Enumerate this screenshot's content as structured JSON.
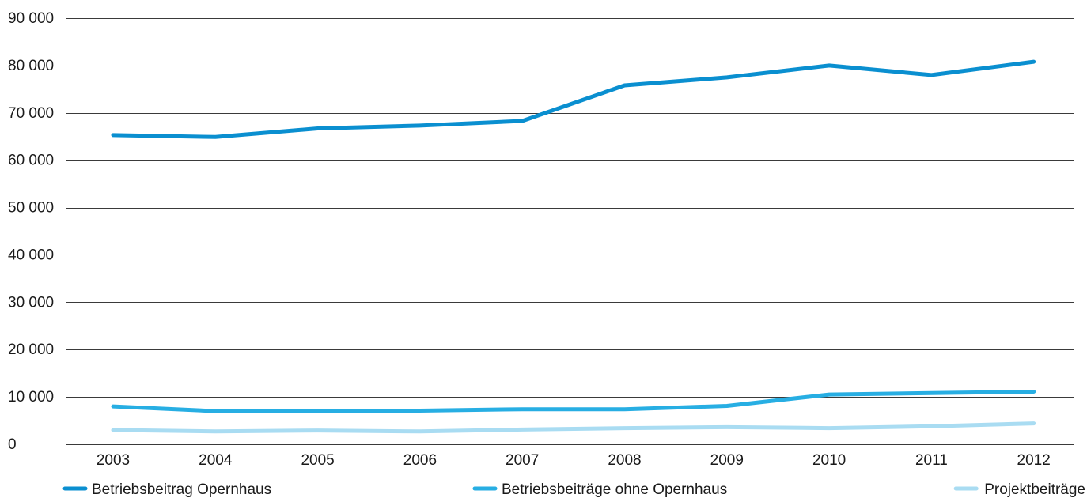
{
  "chart_data": {
    "type": "line",
    "title": "",
    "xlabel": "",
    "ylabel": "",
    "categories": [
      "2003",
      "2004",
      "2005",
      "2006",
      "2007",
      "2008",
      "2009",
      "2010",
      "2011",
      "2012"
    ],
    "ylim": [
      0,
      90000
    ],
    "yticks": [
      0,
      10000,
      20000,
      30000,
      40000,
      50000,
      60000,
      70000,
      80000,
      90000
    ],
    "ytick_labels": [
      "0",
      "10 000",
      "20 000",
      "30 000",
      "40 000",
      "50 000",
      "60 000",
      "70 000",
      "80 000",
      "90 000"
    ],
    "grid": true,
    "legend_placement": "bottom",
    "series": [
      {
        "name": "Betriebsbeitrag Opernhaus",
        "color": "#0a8fd0",
        "values": [
          65300,
          64900,
          66700,
          67300,
          68300,
          75800,
          77500,
          80000,
          78000,
          80800
        ]
      },
      {
        "name": "Betriebsbeiträge ohne Opernhaus",
        "color": "#27aee3",
        "values": [
          8000,
          7000,
          7000,
          7100,
          7400,
          7400,
          8100,
          10500,
          10800,
          11100
        ]
      },
      {
        "name": "Projektbeiträge",
        "color": "#a9dcf2",
        "values": [
          3000,
          2700,
          2900,
          2700,
          3100,
          3400,
          3600,
          3400,
          3800,
          4400
        ]
      }
    ]
  }
}
